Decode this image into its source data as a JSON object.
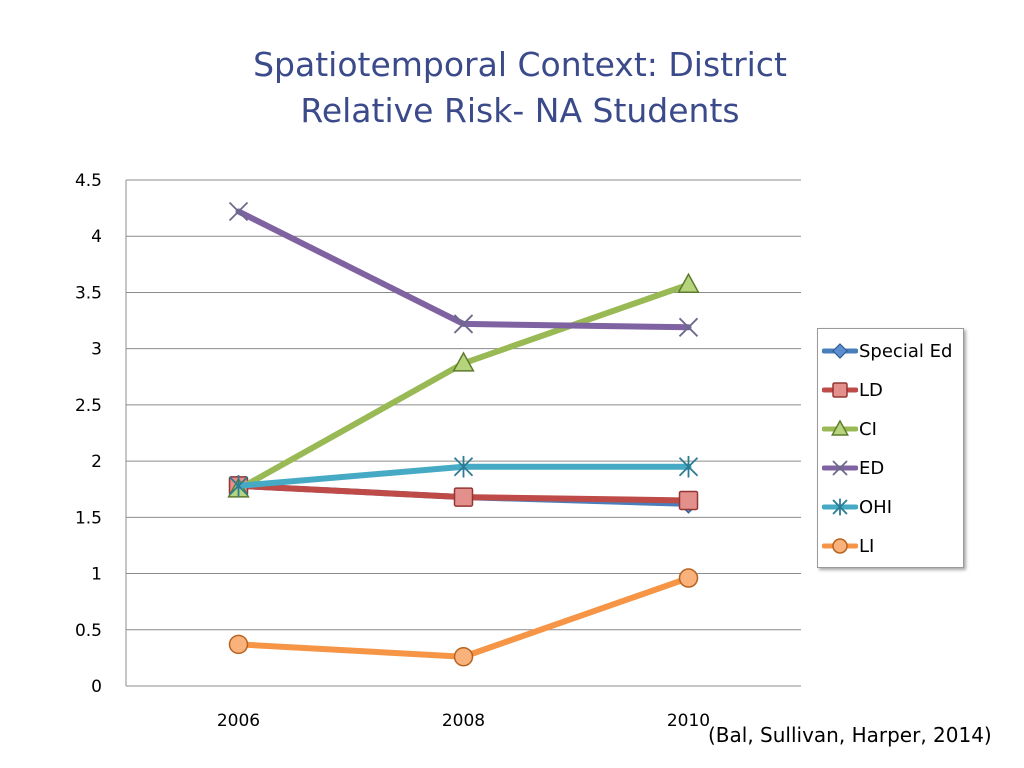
{
  "title_lines": [
    "Spatiotemporal Context: District",
    "Relative Risk- NA Students"
  ],
  "citation": "(Bal, Sullivan, Harper, 2014)",
  "chart_data": {
    "type": "line",
    "title": "Spatiotemporal Context: District Relative Risk- NA Students",
    "xlabel": "",
    "ylabel": "",
    "categories": [
      "2006",
      "2008",
      "2010"
    ],
    "ylim": [
      0,
      4.5
    ],
    "yticks": [
      0,
      0.5,
      1,
      1.5,
      2,
      2.5,
      3,
      3.5,
      4,
      4.5
    ],
    "ytick_labels": [
      "0",
      "0.5",
      "1",
      "1.5",
      "2",
      "2.5",
      "3",
      "3.5",
      "4",
      "4.5"
    ],
    "grid": true,
    "legend_position": "right",
    "series": [
      {
        "name": "Special Ed",
        "values": [
          1.78,
          1.68,
          1.62
        ],
        "color": "#4a7ebb",
        "marker": "diamond"
      },
      {
        "name": "LD",
        "values": [
          1.78,
          1.68,
          1.65
        ],
        "color": "#be4b48",
        "marker": "square"
      },
      {
        "name": "CI",
        "values": [
          1.75,
          2.87,
          3.57
        ],
        "color": "#98b954",
        "marker": "triangle"
      },
      {
        "name": "ED",
        "values": [
          4.22,
          3.22,
          3.19
        ],
        "color": "#7e62a1",
        "marker": "x"
      },
      {
        "name": "OHI",
        "values": [
          1.78,
          1.95,
          1.95
        ],
        "color": "#46aac5",
        "marker": "star"
      },
      {
        "name": "LI",
        "values": [
          0.37,
          0.26,
          0.96
        ],
        "color": "#f69545",
        "marker": "circle"
      }
    ]
  }
}
